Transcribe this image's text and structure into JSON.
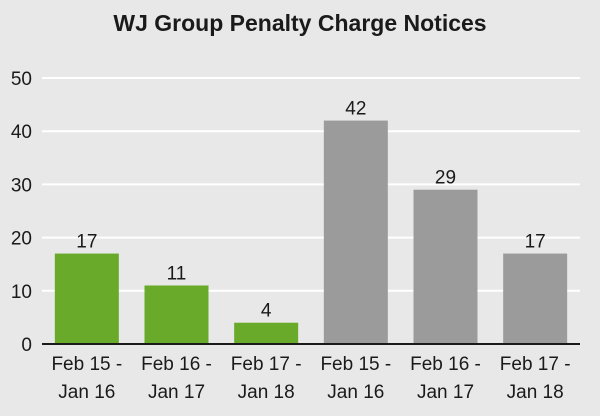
{
  "chart_data": {
    "type": "bar",
    "title": "WJ Group Penalty Charge Notices",
    "xlabel": "",
    "ylabel": "",
    "ylim": [
      0,
      50
    ],
    "yticks": [
      0,
      10,
      20,
      30,
      40,
      50
    ],
    "grid": true,
    "categories": [
      [
        "Feb 15 -",
        "Jan 16"
      ],
      [
        "Feb 16 -",
        "Jan 17"
      ],
      [
        "Feb 17 -",
        "Jan 18"
      ],
      [
        "Feb 15 -",
        "Jan 16"
      ],
      [
        "Feb 16 -",
        "Jan 17"
      ],
      [
        "Feb 17 -",
        "Jan 18"
      ]
    ],
    "values": [
      17,
      11,
      4,
      42,
      29,
      17
    ],
    "colors": [
      "#6aaa2a",
      "#6aaa2a",
      "#6aaa2a",
      "#9b9b9b",
      "#9b9b9b",
      "#9b9b9b"
    ],
    "gridColor": "#ffffff",
    "axisColor": "#1a1a1a"
  }
}
